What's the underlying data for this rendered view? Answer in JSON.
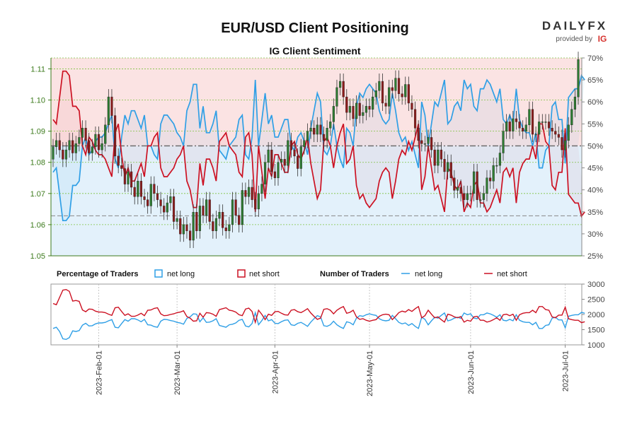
{
  "header": {
    "title": "EUR/USD Client Positioning",
    "subtitle": "IG Client Sentiment",
    "brand_name": "DAILYFX",
    "brand_tagline": "provided by",
    "brand_mark": "IG"
  },
  "colors": {
    "net_long": "#2f9fe6",
    "net_short": "#cc1122",
    "candle_up": "#2e7d32",
    "candle_down": "#8e1b1b",
    "price_axis": "#3c7a1c",
    "upper_fill": "#fbe3e3",
    "lower_fill": "#e3f1fb",
    "grid": "#7fc241"
  },
  "legend": {
    "percentage_title": "Percentage of Traders",
    "percentage_long": "net long",
    "percentage_short": "net short",
    "number_title": "Number of Traders",
    "number_long": "net long",
    "number_short": "net short"
  },
  "chart_data": [
    {
      "type": "candlestick",
      "title": "EUR/USD Client Positioning",
      "subtitle": "IG Client Sentiment",
      "left_axis": {
        "ticks": [
          1.05,
          1.06,
          1.07,
          1.08,
          1.09,
          1.1,
          1.11
        ],
        "tick_labels": [
          "1.05",
          "1.06",
          "1.07",
          "1.08",
          "1.09",
          "1.10",
          "1.11"
        ],
        "range": [
          1.05,
          1.1135
        ]
      },
      "right_axis": {
        "ticks": [
          25,
          30,
          35,
          40,
          45,
          50,
          55,
          60,
          65,
          70
        ],
        "tick_labels": [
          "25%",
          "30%",
          "35%",
          "40%",
          "45%",
          "50%",
          "55%",
          "60%",
          "65%",
          "70%"
        ],
        "range": [
          25,
          70
        ]
      },
      "close_price": [
        1.085,
        1.087,
        1.084,
        1.081,
        1.084,
        1.087,
        1.083,
        1.086,
        1.088,
        1.091,
        1.087,
        1.083,
        1.085,
        1.089,
        1.084,
        1.086,
        1.092,
        1.101,
        1.095,
        1.082,
        1.079,
        1.078,
        1.073,
        1.077,
        1.072,
        1.069,
        1.074,
        1.069,
        1.068,
        1.066,
        1.073,
        1.07,
        1.068,
        1.066,
        1.064,
        1.067,
        1.069,
        1.061,
        1.062,
        1.057,
        1.06,
        1.058,
        1.055,
        1.064,
        1.058,
        1.066,
        1.063,
        1.068,
        1.061,
        1.058,
        1.062,
        1.064,
        1.059,
        1.058,
        1.06,
        1.068,
        1.063,
        1.06,
        1.071,
        1.069,
        1.072,
        1.068,
        1.065,
        1.07,
        1.073,
        1.08,
        1.084,
        1.077,
        1.075,
        1.08,
        1.081,
        1.079,
        1.087,
        1.084,
        1.082,
        1.078,
        1.085,
        1.087,
        1.09,
        1.091,
        1.089,
        1.092,
        1.089,
        1.087,
        1.091,
        1.093,
        1.098,
        1.104,
        1.106,
        1.101,
        1.096,
        1.098,
        1.094,
        1.099,
        1.095,
        1.096,
        1.098,
        1.097,
        1.101,
        1.103,
        1.106,
        1.099,
        1.098,
        1.104,
        1.103,
        1.107,
        1.102,
        1.101,
        1.105,
        1.099,
        1.097,
        1.091,
        1.087,
        1.086,
        1.086,
        1.088,
        1.084,
        1.079,
        1.084,
        1.081,
        1.077,
        1.08,
        1.075,
        1.071,
        1.072,
        1.07,
        1.068,
        1.07,
        1.07,
        1.077,
        1.068,
        1.068,
        1.07,
        1.075,
        1.074,
        1.079,
        1.079,
        1.083,
        1.09,
        1.093,
        1.09,
        1.094,
        1.093,
        1.091,
        1.09,
        1.092,
        1.097,
        1.089,
        1.089,
        1.093,
        1.093,
        1.093,
        1.091,
        1.09,
        1.089,
        1.088,
        1.084,
        1.087,
        1.092,
        1.097,
        1.101,
        1.113
      ],
      "open_price": [
        1.081,
        1.085,
        1.087,
        1.084,
        1.081,
        1.084,
        1.087,
        1.083,
        1.086,
        1.088,
        1.091,
        1.087,
        1.083,
        1.085,
        1.089,
        1.084,
        1.086,
        1.092,
        1.101,
        1.095,
        1.082,
        1.079,
        1.078,
        1.073,
        1.077,
        1.072,
        1.069,
        1.074,
        1.069,
        1.068,
        1.066,
        1.073,
        1.07,
        1.068,
        1.066,
        1.064,
        1.067,
        1.069,
        1.061,
        1.062,
        1.057,
        1.06,
        1.058,
        1.055,
        1.064,
        1.058,
        1.066,
        1.063,
        1.068,
        1.061,
        1.058,
        1.062,
        1.064,
        1.059,
        1.058,
        1.06,
        1.068,
        1.063,
        1.06,
        1.071,
        1.069,
        1.072,
        1.068,
        1.065,
        1.07,
        1.073,
        1.08,
        1.084,
        1.077,
        1.075,
        1.08,
        1.081,
        1.079,
        1.087,
        1.084,
        1.082,
        1.078,
        1.085,
        1.087,
        1.09,
        1.091,
        1.089,
        1.092,
        1.089,
        1.087,
        1.091,
        1.093,
        1.098,
        1.104,
        1.106,
        1.101,
        1.096,
        1.098,
        1.094,
        1.099,
        1.095,
        1.096,
        1.098,
        1.097,
        1.101,
        1.103,
        1.106,
        1.099,
        1.098,
        1.104,
        1.103,
        1.107,
        1.102,
        1.101,
        1.105,
        1.099,
        1.097,
        1.091,
        1.087,
        1.086,
        1.086,
        1.088,
        1.084,
        1.079,
        1.084,
        1.081,
        1.077,
        1.08,
        1.075,
        1.071,
        1.072,
        1.07,
        1.068,
        1.07,
        1.07,
        1.077,
        1.068,
        1.068,
        1.07,
        1.075,
        1.074,
        1.079,
        1.079,
        1.083,
        1.09,
        1.093,
        1.09,
        1.094,
        1.093,
        1.091,
        1.09,
        1.092,
        1.097,
        1.089,
        1.089,
        1.093,
        1.093,
        1.093,
        1.091,
        1.09,
        1.089,
        1.088,
        1.084,
        1.087,
        1.092,
        1.097,
        1.101
      ],
      "series": [
        {
          "name": "net long",
          "axis": "right",
          "values_percent": [
            44,
            45,
            39,
            33,
            33,
            34,
            41,
            41,
            42,
            50,
            52,
            48,
            49,
            51,
            52,
            52,
            53,
            55,
            57,
            47,
            45,
            52,
            57,
            55,
            58,
            58,
            56,
            54,
            57,
            50,
            50,
            48,
            47,
            55,
            57,
            57,
            56,
            55,
            53,
            52,
            50,
            58,
            60,
            64,
            64,
            54,
            59,
            53,
            53,
            55,
            58,
            49,
            48,
            47,
            50,
            51,
            52,
            56,
            57,
            48,
            47,
            52,
            65,
            50,
            56,
            62,
            55,
            57,
            52,
            52,
            54,
            56,
            56,
            50,
            49,
            52,
            53,
            51,
            48,
            54,
            58,
            62,
            60,
            49,
            48,
            50,
            55,
            50,
            47,
            45,
            54,
            53,
            50,
            59,
            62,
            61,
            63,
            64,
            63,
            62,
            58,
            56,
            55,
            56,
            62,
            58,
            53,
            51,
            52,
            49,
            51,
            48,
            45,
            60,
            57,
            50,
            55,
            60,
            59,
            62,
            65,
            55,
            56,
            59,
            60,
            58,
            65,
            63,
            64,
            59,
            58,
            63,
            63,
            65,
            64,
            62,
            60,
            63,
            56,
            55,
            57,
            55,
            63,
            56,
            54,
            53,
            53,
            50,
            53,
            45,
            45,
            49,
            50,
            59,
            60,
            56,
            56,
            46,
            61,
            62,
            63,
            63,
            66,
            65
          ],
          "values_count": [
            1540,
            1580,
            1440,
            1200,
            1180,
            1240,
            1460,
            1440,
            1470,
            1650,
            1710,
            1620,
            1630,
            1690,
            1720,
            1720,
            1740,
            1790,
            1830,
            1580,
            1560,
            1700,
            1830,
            1780,
            1860,
            1860,
            1820,
            1760,
            1840,
            1660,
            1650,
            1600,
            1580,
            1780,
            1840,
            1830,
            1800,
            1780,
            1740,
            1720,
            1680,
            1870,
            1920,
            2020,
            2010,
            1760,
            1890,
            1740,
            1750,
            1790,
            1860,
            1640,
            1610,
            1580,
            1660,
            1680,
            1720,
            1810,
            1840,
            1620,
            1590,
            1700,
            2060,
            1660,
            1800,
            1970,
            1790,
            1830,
            1710,
            1700,
            1760,
            1810,
            1820,
            1660,
            1640,
            1710,
            1740,
            1680,
            1610,
            1750,
            1860,
            1960,
            1920,
            1630,
            1610,
            1660,
            1780,
            1660,
            1590,
            1540,
            1760,
            1730,
            1660,
            1880,
            1960,
            1940,
            1990,
            2020,
            1990,
            1970,
            1860,
            1810,
            1790,
            1810,
            1970,
            1860,
            1740,
            1690,
            1720,
            1640,
            1700,
            1610,
            1540,
            1910,
            1840,
            1660,
            1790,
            1910,
            1880,
            1970,
            2050,
            1790,
            1820,
            1880,
            1910,
            1870,
            2050,
            1990,
            2020,
            1880,
            1860,
            1990,
            1990,
            2050,
            2020,
            1970,
            1910,
            1990,
            1810,
            1790,
            1840,
            1790,
            1990,
            1810,
            1760,
            1740,
            1740,
            1660,
            1740,
            1540,
            1540,
            1640,
            1660,
            1880,
            1910,
            1820,
            1820,
            1560,
            1940,
            1970,
            1990,
            1990,
            2070,
            2040
          ]
        },
        {
          "name": "net short",
          "axis": "right",
          "values_percent": [
            56,
            55,
            61,
            67,
            67,
            66,
            59,
            59,
            58,
            50,
            48,
            52,
            51,
            49,
            48,
            48,
            47,
            45,
            43,
            53,
            55,
            48,
            43,
            45,
            42,
            42,
            44,
            46,
            43,
            50,
            50,
            52,
            53,
            45,
            43,
            43,
            44,
            45,
            47,
            48,
            50,
            42,
            40,
            36,
            36,
            46,
            41,
            47,
            47,
            45,
            42,
            51,
            52,
            53,
            50,
            49,
            48,
            44,
            43,
            52,
            53,
            48,
            35,
            50,
            44,
            38,
            45,
            43,
            48,
            48,
            46,
            44,
            44,
            50,
            51,
            48,
            47,
            49,
            52,
            46,
            42,
            38,
            40,
            51,
            52,
            50,
            45,
            50,
            53,
            55,
            46,
            47,
            50,
            41,
            38,
            39,
            37,
            36,
            37,
            38,
            42,
            44,
            45,
            44,
            38,
            42,
            47,
            49,
            48,
            51,
            49,
            52,
            55,
            40,
            43,
            50,
            45,
            40,
            41,
            38,
            35,
            45,
            44,
            41,
            40,
            42,
            35,
            37,
            36,
            41,
            42,
            37,
            37,
            35,
            36,
            38,
            40,
            37,
            44,
            45,
            43,
            45,
            37,
            44,
            46,
            47,
            47,
            50,
            47,
            55,
            55,
            51,
            50,
            41,
            40,
            44,
            44,
            54,
            39,
            38,
            37,
            37,
            34,
            35
          ],
          "values_count": [
            2360,
            2320,
            2560,
            2800,
            2820,
            2760,
            2440,
            2460,
            2430,
            2150,
            2090,
            2180,
            2170,
            2110,
            2080,
            2080,
            2060,
            2010,
            1970,
            2220,
            2240,
            2100,
            1970,
            2020,
            1940,
            1940,
            1980,
            2040,
            1960,
            2140,
            2150,
            2200,
            2220,
            2020,
            1960,
            1970,
            2000,
            2020,
            2060,
            2080,
            2120,
            1930,
            1880,
            1780,
            1790,
            2040,
            1910,
            2060,
            2050,
            2010,
            1940,
            2160,
            2190,
            2220,
            2140,
            2120,
            2080,
            1990,
            1960,
            2180,
            2210,
            2100,
            1740,
            2140,
            2000,
            1830,
            2010,
            1970,
            2090,
            2100,
            2040,
            1990,
            1980,
            2140,
            2160,
            2090,
            2060,
            2120,
            2190,
            2050,
            1940,
            1840,
            1880,
            2170,
            2190,
            2140,
            2020,
            2140,
            2210,
            2260,
            2040,
            2070,
            2140,
            1920,
            1840,
            1860,
            1810,
            1780,
            1810,
            1830,
            1940,
            1990,
            2010,
            1990,
            1830,
            1940,
            2060,
            2110,
            2080,
            2160,
            2100,
            2190,
            2260,
            1890,
            1960,
            2140,
            2010,
            1890,
            1920,
            1830,
            1750,
            2010,
            1980,
            1920,
            1890,
            1930,
            1750,
            1810,
            1780,
            1920,
            1940,
            1810,
            1810,
            1750,
            1780,
            1830,
            1890,
            1810,
            1990,
            2010,
            1960,
            2010,
            1810,
            1990,
            2040,
            2060,
            2060,
            2140,
            2060,
            2260,
            2260,
            2160,
            2140,
            1920,
            1890,
            1980,
            1980,
            2240,
            1860,
            1830,
            1810,
            1810,
            1730,
            1760
          ]
        }
      ]
    },
    {
      "type": "line",
      "title": "Number of Traders",
      "y_axis": {
        "ticks": [
          1000,
          1500,
          2000,
          2500,
          3000
        ],
        "tick_labels": [
          "1000",
          "1500",
          "2000",
          "2500",
          "3000"
        ],
        "range": [
          1000,
          3000
        ]
      },
      "x_axis": {
        "tick_labels": [
          "2023-Feb-01",
          "2023-Mar-01",
          "2023-Apr-01",
          "2023-May-01",
          "2023-Jun-01",
          "2023-Jul-01"
        ]
      }
    }
  ]
}
